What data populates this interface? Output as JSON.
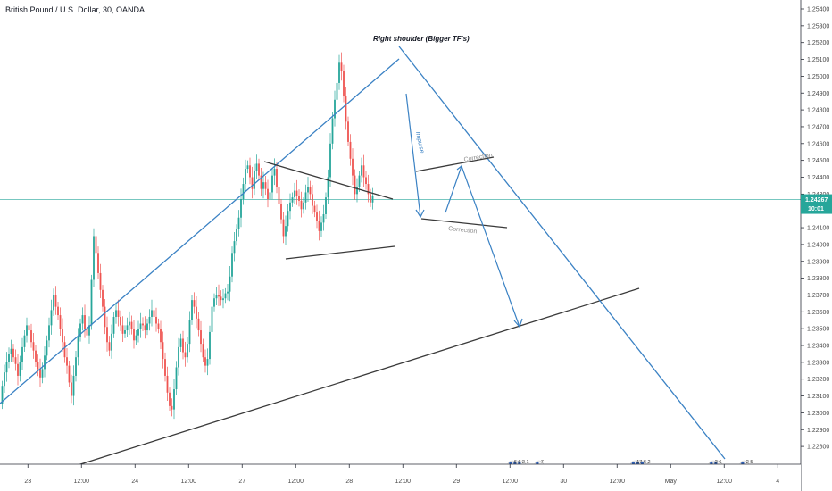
{
  "header": {
    "symbol_title": "British Pound / U.S. Dollar, 30, OANDA"
  },
  "chart_data": {
    "type": "candlestick",
    "title": "British Pound / U.S. Dollar, 30, OANDA",
    "y_ticks": [
      "1.25400",
      "1.25300",
      "1.25200",
      "1.25100",
      "1.25000",
      "1.24900",
      "1.24800",
      "1.24700",
      "1.24600",
      "1.24500",
      "1.24400",
      "1.24300",
      "1.24200",
      "1.24100",
      "1.24000",
      "1.23900",
      "1.23800",
      "1.23700",
      "1.23600",
      "1.23500",
      "1.23400",
      "1.23300",
      "1.23200",
      "1.23100",
      "1.23000",
      "1.22900",
      "1.22800"
    ],
    "ylim": [
      1.2275,
      1.2545
    ],
    "x_ticks": [
      {
        "label": "23",
        "slot": 12
      },
      {
        "label": "12:00",
        "slot": 36
      },
      {
        "label": "24",
        "slot": 60
      },
      {
        "label": "12:00",
        "slot": 84
      },
      {
        "label": "27",
        "slot": 108
      },
      {
        "label": "12:00",
        "slot": 132
      },
      {
        "label": "28",
        "slot": 156
      },
      {
        "label": "12:00",
        "slot": 180
      },
      {
        "label": "29",
        "slot": 204
      },
      {
        "label": "12:00",
        "slot": 228
      },
      {
        "label": "30",
        "slot": 252
      },
      {
        "label": "12:00",
        "slot": 276
      },
      {
        "label": "May",
        "slot": 300
      },
      {
        "label": "12:00",
        "slot": 324
      },
      {
        "label": "4",
        "slot": 348
      }
    ],
    "current_price": "1.24267",
    "countdown": "10:01",
    "colors": {
      "up": "#26a69a",
      "down": "#ef5350",
      "blue": "#3b82c4",
      "black": "#3a3a3a",
      "price_line": "#26a69a"
    },
    "closes": [
      1.2316,
      1.2324,
      1.233,
      1.2335,
      1.2338,
      1.2333,
      1.2329,
      1.2322,
      1.233,
      1.2339,
      1.2346,
      1.2352,
      1.2349,
      1.2342,
      1.2337,
      1.233,
      1.2326,
      1.2321,
      1.2326,
      1.2334,
      1.2343,
      1.2352,
      1.2361,
      1.237,
      1.2363,
      1.2358,
      1.235,
      1.2342,
      1.2333,
      1.2328,
      1.2318,
      1.231,
      1.2322,
      1.2333,
      1.2345,
      1.2353,
      1.2358,
      1.235,
      1.2346,
      1.2352,
      1.2379,
      1.2405,
      1.2395,
      1.2383,
      1.2373,
      1.2363,
      1.2351,
      1.2342,
      1.2337,
      1.2347,
      1.2357,
      1.2361,
      1.2357,
      1.2352,
      1.2347,
      1.2349,
      1.2352,
      1.2354,
      1.235,
      1.2343,
      1.2346,
      1.235,
      1.2353,
      1.2352,
      1.2349,
      1.2353,
      1.2357,
      1.2361,
      1.2357,
      1.2353,
      1.235,
      1.2342,
      1.2332,
      1.2322,
      1.2312,
      1.2304,
      1.2302,
      1.2314,
      1.2327,
      1.2339,
      1.2344,
      1.2336,
      1.2333,
      1.2341,
      1.2355,
      1.2367,
      1.2363,
      1.2356,
      1.2349,
      1.2341,
      1.2333,
      1.2328,
      1.2332,
      1.2348,
      1.2363,
      1.2368,
      1.237,
      1.2369,
      1.2367,
      1.2368,
      1.2371,
      1.2372,
      1.2381,
      1.2395,
      1.2402,
      1.2409,
      1.2416,
      1.2427,
      1.2436,
      1.2445,
      1.2447,
      1.244,
      1.2433,
      1.2444,
      1.2448,
      1.2441,
      1.2433,
      1.2437,
      1.2433,
      1.2427,
      1.2431,
      1.2441,
      1.2445,
      1.2434,
      1.2424,
      1.2415,
      1.2405,
      1.2411,
      1.242,
      1.2425,
      1.2428,
      1.2432,
      1.2429,
      1.2426,
      1.2421,
      1.2425,
      1.2431,
      1.2434,
      1.243,
      1.2423,
      1.2419,
      1.2414,
      1.2408,
      1.2413,
      1.2418,
      1.2428,
      1.244,
      1.246,
      1.2475,
      1.2486,
      1.2496,
      1.2508,
      1.2503,
      1.2488,
      1.2473,
      1.2461,
      1.2451,
      1.2441,
      1.243,
      1.2434,
      1.2441,
      1.2447,
      1.244,
      1.2436,
      1.243,
      1.2425,
      1.2429
    ]
  },
  "annotations": {
    "right_shoulder": "Right shoulder (Bigger TF's)",
    "impulse": "Impulse",
    "correction_top": "Correction",
    "correction_bottom": "Correction"
  },
  "events": [
    {
      "text": "6 6 2 1",
      "slot": 229,
      "flags": 3
    },
    {
      "text": "7",
      "slot": 241,
      "flags": 1
    },
    {
      "text": "17 6 2",
      "slot": 284,
      "flags": 3
    },
    {
      "text": "2 6",
      "slot": 319,
      "flags": 2
    },
    {
      "text": "2 5",
      "slot": 333,
      "flags": 1
    }
  ]
}
